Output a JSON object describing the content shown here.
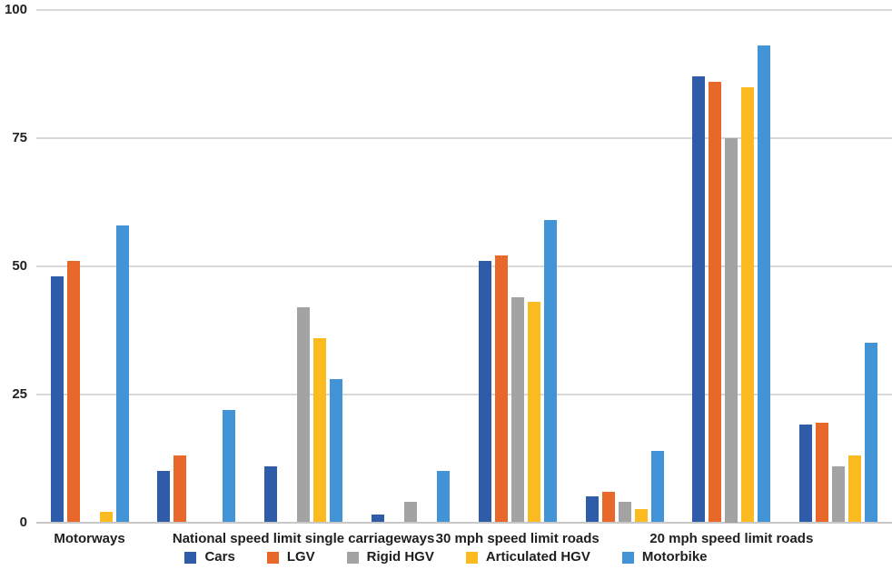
{
  "chart_data": {
    "type": "bar",
    "title": "",
    "xlabel": "",
    "ylabel": "",
    "ylim": [
      0,
      100
    ],
    "yticks": [
      0,
      25,
      50,
      75,
      100
    ],
    "grid": "horizontal",
    "legend_position": "bottom-center",
    "categories": [
      "Motorways",
      "",
      "National speed limit single carriageways",
      "",
      "30 mph speed limit roads",
      "",
      "20 mph speed limit roads",
      ""
    ],
    "series": [
      {
        "name": "Cars",
        "color": "#2E5CA8",
        "values": [
          48,
          10,
          11,
          1.5,
          51,
          5,
          87,
          19
        ]
      },
      {
        "name": "LGV",
        "color": "#E8682C",
        "values": [
          51,
          13,
          null,
          null,
          52,
          6,
          86,
          19.5
        ]
      },
      {
        "name": "Rigid HGV",
        "color": "#A3A3A4",
        "values": [
          null,
          null,
          42,
          4,
          44,
          4,
          75,
          11
        ]
      },
      {
        "name": "Articulated HGV",
        "color": "#FBBA1F",
        "values": [
          2,
          null,
          36,
          null,
          43,
          2.5,
          85,
          13
        ]
      },
      {
        "name": "Motorbike",
        "color": "#4394D6",
        "values": [
          58,
          22,
          28,
          10,
          59,
          14,
          93,
          35
        ]
      }
    ]
  }
}
